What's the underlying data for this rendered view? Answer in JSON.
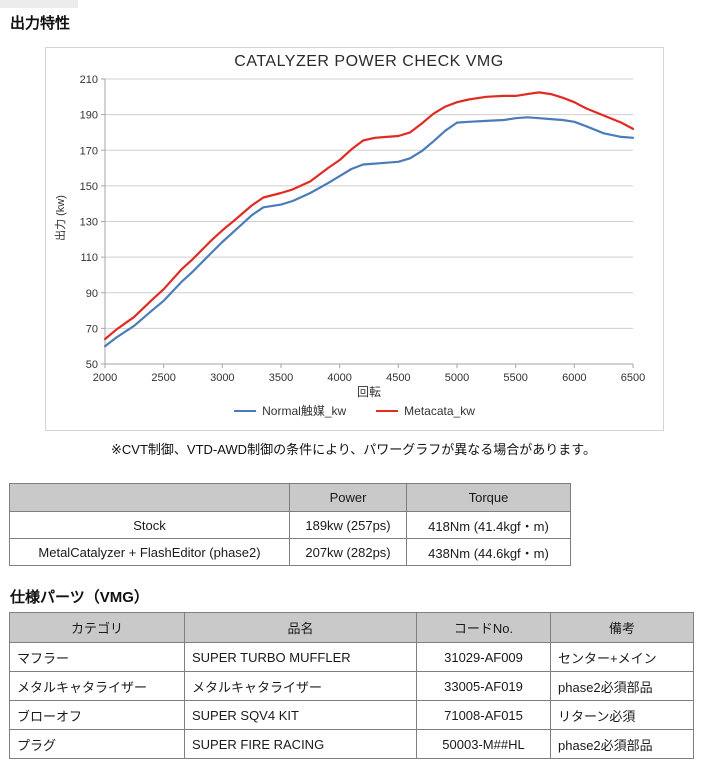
{
  "page": {
    "section1_title": "出力特性",
    "section2_title": "仕様パーツ（VMG）",
    "note": "※CVT制御、VTD-AWD制御の条件により、パワーグラフが異なる場合があります。"
  },
  "chart_data": {
    "type": "line",
    "title": "CATALYZER POWER CHECK VMG",
    "xlabel": "回転",
    "ylabel": "出力 (kw)",
    "xlim": [
      2000,
      6500
    ],
    "ylim": [
      50,
      210
    ],
    "xticks": [
      2000,
      2500,
      3000,
      3500,
      4000,
      4500,
      5000,
      5500,
      6000,
      6500
    ],
    "yticks": [
      50,
      70,
      90,
      110,
      130,
      150,
      170,
      190,
      210
    ],
    "grid": "horizontal",
    "legend_position": "bottom",
    "colors": {
      "grid": "#cfcfcf",
      "axis": "#a6a6a6",
      "tick_text": "#333333"
    },
    "x": [
      2000,
      2100,
      2250,
      2400,
      2500,
      2650,
      2750,
      2900,
      3000,
      3100,
      3250,
      3350,
      3500,
      3600,
      3750,
      3900,
      4000,
      4100,
      4200,
      4300,
      4400,
      4500,
      4600,
      4700,
      4800,
      4900,
      5000,
      5100,
      5250,
      5400,
      5500,
      5600,
      5700,
      5800,
      5900,
      6000,
      6100,
      6250,
      6400,
      6500
    ],
    "series": [
      {
        "name": "Normal触媒_kw",
        "color": "#4b7cba",
        "values": [
          60,
          65,
          71.5,
          80,
          85.5,
          96,
          102,
          112,
          118.5,
          124.5,
          133.5,
          138,
          139.5,
          141.5,
          146,
          151.5,
          155.5,
          159.5,
          162,
          162.5,
          163,
          163.5,
          165.5,
          169.5,
          175,
          181,
          185.5,
          186,
          186.5,
          187,
          188,
          188.5,
          188,
          187.5,
          187,
          186,
          183.5,
          179.5,
          177.5,
          177
        ]
      },
      {
        "name": "Metacata_kw",
        "color": "#e12b22",
        "values": [
          64,
          69.5,
          76.5,
          86,
          92,
          103,
          109,
          119,
          125,
          130.5,
          139,
          143.5,
          146,
          148,
          152.5,
          160,
          164.5,
          170.5,
          175.5,
          177,
          177.5,
          178,
          180,
          185,
          190.5,
          194.5,
          197,
          198.5,
          200,
          200.5,
          200.5,
          201.5,
          202.5,
          201.5,
          199.5,
          197,
          193.5,
          189.5,
          185.5,
          182
        ]
      }
    ]
  },
  "power_table": {
    "headers": [
      "",
      "Power",
      "Torque"
    ],
    "rows": [
      [
        "Stock",
        "189kw (257ps)",
        "418Nm (41.4kgf・m)"
      ],
      [
        "MetalCatalyzer + FlashEditor (phase2)",
        "207kw (282ps)",
        "438Nm (44.6kgf・m)"
      ]
    ]
  },
  "parts_table": {
    "headers": [
      "カテゴリ",
      "品名",
      "コードNo.",
      "備考"
    ],
    "rows": [
      [
        "マフラー",
        "SUPER TURBO MUFFLER",
        "31029-AF009",
        "センター+メイン"
      ],
      [
        "メタルキャタライザー",
        "メタルキャタライザー",
        "33005-AF019",
        "phase2必須部品"
      ],
      [
        "ブローオフ",
        "SUPER SQV4 KIT",
        "71008-AF015",
        "リターン必須"
      ],
      [
        "プラグ",
        "SUPER FIRE RACING",
        "50003-M##HL",
        "phase2必須部品"
      ]
    ]
  }
}
